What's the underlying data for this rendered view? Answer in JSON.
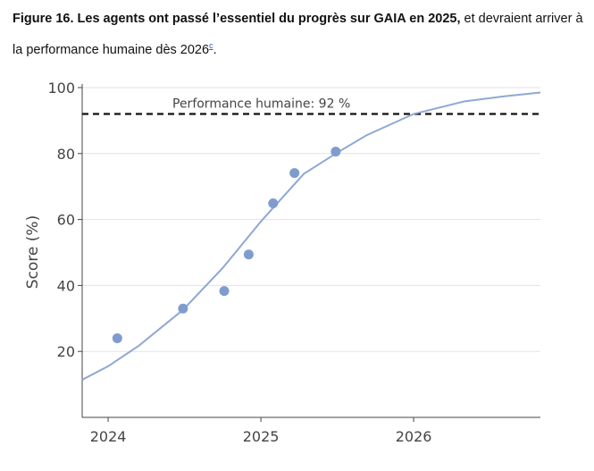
{
  "chart_data": {
    "type": "scatter",
    "title_bold": "Figure 16. Les agents ont passé l’essentiel du progrès sur GAIA en 2025,",
    "title_rest": " et devraient arriver à la performance humaine dès 2026",
    "footnote": "c",
    "title_end": ".",
    "ylabel": "Score (%)",
    "points": {
      "color": "#7f9ccf",
      "x": [
        2024.06,
        2024.49,
        2024.76,
        2024.92,
        2025.08,
        2025.22,
        2025.49
      ],
      "values": [
        24,
        33,
        38.3,
        49.4,
        64.9,
        74.1,
        80.6
      ]
    },
    "fit": {
      "color": "#8fa8d4",
      "x": [
        2023.83,
        2024.0,
        2024.2,
        2024.49,
        2024.75,
        2025.0,
        2025.28,
        2025.49,
        2025.69,
        2026.0,
        2026.33,
        2026.6,
        2026.83
      ],
      "values": [
        11.4,
        15.5,
        21.7,
        32.6,
        45.3,
        59.4,
        73.8,
        80,
        85.5,
        92,
        95.8,
        97.4,
        98.5
      ]
    },
    "reference_line": {
      "value": 92,
      "label": "Performance humaine: 92 %"
    },
    "xlim": [
      2023.83,
      2026.83
    ],
    "xticks": [
      2024,
      2025,
      2026
    ],
    "ylim": [
      0,
      100
    ],
    "yticks": [
      20,
      40,
      60,
      80,
      100
    ],
    "grid": true
  }
}
